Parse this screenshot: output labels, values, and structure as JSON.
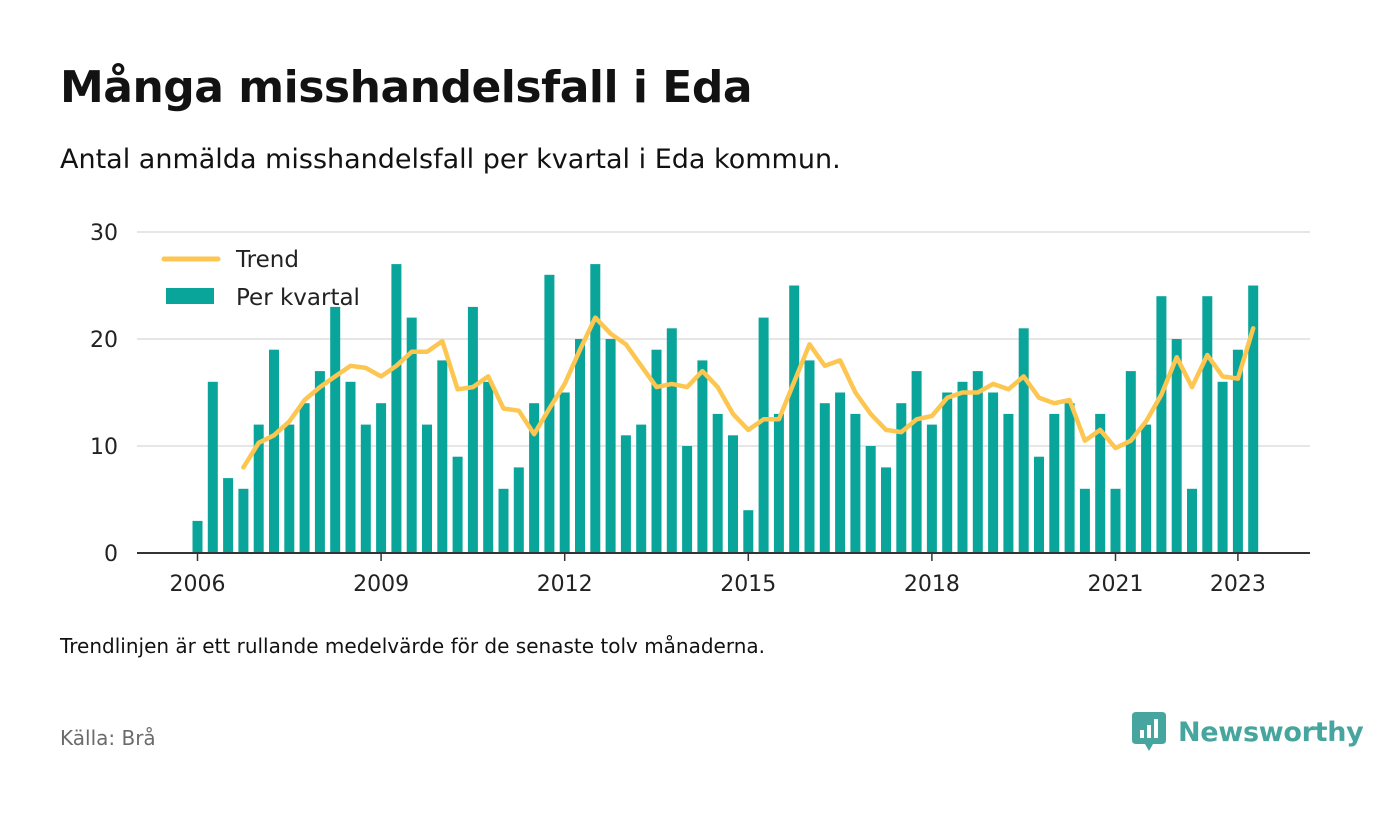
{
  "header": {
    "title": "Många misshandelsfall i Eda",
    "subtitle": "Antal anmälda misshandelsfall per kvartal i Eda kommun."
  },
  "footer": {
    "note": "Trendlinjen är ett rullande medelvärde för de senaste tolv månaderna.",
    "source": "Källa: Brå",
    "brand": "Newsworthy"
  },
  "colors": {
    "bar": "#0aa59a",
    "trend": "#fcc650",
    "grid": "#dddddd",
    "axis": "#333333",
    "brand": "#46a59e"
  },
  "chart_data": {
    "type": "bar",
    "x_axis_ticks": [
      "2006",
      "2009",
      "2012",
      "2015",
      "2018",
      "2021",
      "2023"
    ],
    "y_axis_ticks": [
      0,
      10,
      20,
      30
    ],
    "ylim": [
      0,
      30
    ],
    "grid": true,
    "legend_position": "top-left",
    "categories": [
      "2006 Q1",
      "2006 Q2",
      "2006 Q3",
      "2006 Q4",
      "2007 Q1",
      "2007 Q2",
      "2007 Q3",
      "2007 Q4",
      "2008 Q1",
      "2008 Q2",
      "2008 Q3",
      "2008 Q4",
      "2009 Q1",
      "2009 Q2",
      "2009 Q3",
      "2009 Q4",
      "2010 Q1",
      "2010 Q2",
      "2010 Q3",
      "2010 Q4",
      "2011 Q1",
      "2011 Q2",
      "2011 Q3",
      "2011 Q4",
      "2012 Q1",
      "2012 Q2",
      "2012 Q3",
      "2012 Q4",
      "2013 Q1",
      "2013 Q2",
      "2013 Q3",
      "2013 Q4",
      "2014 Q1",
      "2014 Q2",
      "2014 Q3",
      "2014 Q4",
      "2015 Q1",
      "2015 Q2",
      "2015 Q3",
      "2015 Q4",
      "2016 Q1",
      "2016 Q2",
      "2016 Q3",
      "2016 Q4",
      "2017 Q1",
      "2017 Q2",
      "2017 Q3",
      "2017 Q4",
      "2018 Q1",
      "2018 Q2",
      "2018 Q3",
      "2018 Q4",
      "2019 Q1",
      "2019 Q2",
      "2019 Q3",
      "2019 Q4",
      "2020 Q1",
      "2020 Q2",
      "2020 Q3",
      "2020 Q4",
      "2021 Q1",
      "2021 Q2",
      "2021 Q3",
      "2021 Q4",
      "2022 Q1",
      "2022 Q2",
      "2022 Q3",
      "2022 Q4",
      "2023 Q1",
      "2023 Q2"
    ],
    "series": [
      {
        "name": "Per kvartal",
        "values": [
          3,
          16,
          7,
          6,
          12,
          19,
          12,
          14,
          17,
          23,
          16,
          12,
          14,
          27,
          22,
          12,
          18,
          9,
          23,
          16,
          6,
          8,
          14,
          26,
          15,
          20,
          27,
          20,
          11,
          12,
          19,
          21,
          10,
          18,
          13,
          11,
          4,
          22,
          13,
          25,
          18,
          14,
          15,
          13,
          10,
          8,
          14,
          17,
          12,
          15,
          16,
          17,
          15,
          13,
          21,
          9,
          13,
          14,
          6,
          13,
          6,
          17,
          12,
          24,
          20,
          6,
          24,
          16,
          19,
          25
        ]
      },
      {
        "name": "Trend",
        "values": [
          null,
          null,
          null,
          8,
          10.3,
          11,
          12.3,
          14.3,
          15.5,
          16.5,
          17.5,
          17.3,
          16.5,
          17.5,
          18.8,
          18.8,
          19.8,
          15.3,
          15.5,
          16.5,
          13.5,
          13.3,
          11.1,
          13.5,
          15.8,
          19,
          22,
          20.5,
          19.5,
          17.5,
          15.5,
          15.8,
          15.5,
          17,
          15.5,
          13,
          11.5,
          12.5,
          12.5,
          16,
          19.5,
          17.5,
          18,
          15,
          13,
          11.5,
          11.3,
          12.5,
          12.8,
          14.5,
          15,
          15,
          15.8,
          15.3,
          16.5,
          14.5,
          14,
          14.3,
          10.5,
          11.5,
          9.8,
          10.5,
          12.3,
          14.8,
          18.3,
          15.5,
          18.5,
          16.5,
          16.3,
          21
        ]
      }
    ]
  }
}
